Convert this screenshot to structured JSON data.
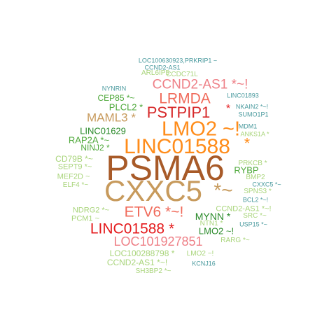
{
  "palette": {
    "teal": "#4a9a9e",
    "light_green": "#a8d47a",
    "green": "#4ea83a",
    "dark_green": "#2a8a2a",
    "pink": "#ee7f86",
    "salmon": "#f06a5a",
    "red": "#e41a1c",
    "crimson": "#d62728",
    "orange": "#ff8c1a",
    "tan": "#c79a5c",
    "brown": "#a85a28",
    "rose": "#c96f77"
  },
  "words": [
    {
      "text": "LOC100630923,PRKRIP1 ~",
      "color": "teal"
    },
    {
      "text": "CCND2-AS1",
      "color": "teal"
    },
    {
      "text": "ARL6IP5",
      "color": "light_green"
    },
    {
      "text": "CCDC71L",
      "color": "light_green"
    },
    {
      "text": "CCND2-AS1 *~!",
      "color": "pink"
    },
    {
      "text": "NYNRIN",
      "color": "teal"
    },
    {
      "text": "LINC01893",
      "color": "teal"
    },
    {
      "text": "CEP85 *~",
      "color": "green"
    },
    {
      "text": "LRMDA",
      "color": "salmon"
    },
    {
      "text": "PLCL2 *",
      "color": "green"
    },
    {
      "text": "NKAIN2 *~!",
      "color": "teal"
    },
    {
      "text": "PSTPIP1",
      "color": "crimson"
    },
    {
      "text": "*",
      "color": "red"
    },
    {
      "text": "SUMO1P1",
      "color": "teal"
    },
    {
      "text": "MAML3 *",
      "color": "tan"
    },
    {
      "text": "MDM1",
      "color": "teal"
    },
    {
      "text": "LMO2 ~!",
      "color": "orange"
    },
    {
      "text": "LINC01629",
      "color": "dark_green"
    },
    {
      "text": "ANKS1A *",
      "color": "light_green"
    },
    {
      "text": "RAP2A *~",
      "color": "green"
    },
    {
      "text": "LINC01588",
      "color": "orange"
    },
    {
      "text": "*",
      "color": "orange"
    },
    {
      "text": "NINJ2 *",
      "color": "green"
    },
    {
      "text": "CD79B *~",
      "color": "light_green"
    },
    {
      "text": "PSMA6",
      "color": "brown"
    },
    {
      "text": "SEPT9 *~",
      "color": "light_green"
    },
    {
      "text": "PRKCB *",
      "color": "light_green"
    },
    {
      "text": "RYBP",
      "color": "green"
    },
    {
      "text": "MEF2D ~",
      "color": "light_green"
    },
    {
      "text": "BMP2",
      "color": "light_green"
    },
    {
      "text": "ELF4 *~",
      "color": "light_green"
    },
    {
      "text": "CXXC5 *~",
      "color": "teal"
    },
    {
      "text": "CXXC5",
      "color": "tan"
    },
    {
      "text": "*~",
      "color": "tan"
    },
    {
      "text": "SPNS3 *",
      "color": "light_green"
    },
    {
      "text": "BCL2 *~!",
      "color": "teal"
    },
    {
      "text": "NDRG2 *~",
      "color": "light_green"
    },
    {
      "text": "ETV6 *~!",
      "color": "salmon"
    },
    {
      "text": "CCND2-AS1 *~!",
      "color": "light_green"
    },
    {
      "text": "MYNN *",
      "color": "dark_green"
    },
    {
      "text": "NTN1 *",
      "color": "light_green"
    },
    {
      "text": "SRC *~",
      "color": "light_green"
    },
    {
      "text": "PCM1 ~",
      "color": "light_green"
    },
    {
      "text": "USP15 *~",
      "color": "teal"
    },
    {
      "text": "LINC01588 *",
      "color": "red"
    },
    {
      "text": "LMO2 ~!",
      "color": "dark_green"
    },
    {
      "text": "LOC101927851",
      "color": "pink"
    },
    {
      "text": "RARG *~",
      "color": "light_green"
    },
    {
      "text": "LOC100288798 *",
      "color": "light_green"
    },
    {
      "text": "LMO2 ~!",
      "color": "light_green"
    },
    {
      "text": "CCND2-AS1 *~!",
      "color": "light_green"
    },
    {
      "text": "KCNJ16",
      "color": "teal"
    },
    {
      "text": "SH3BP2 *~",
      "color": "light_green"
    }
  ]
}
